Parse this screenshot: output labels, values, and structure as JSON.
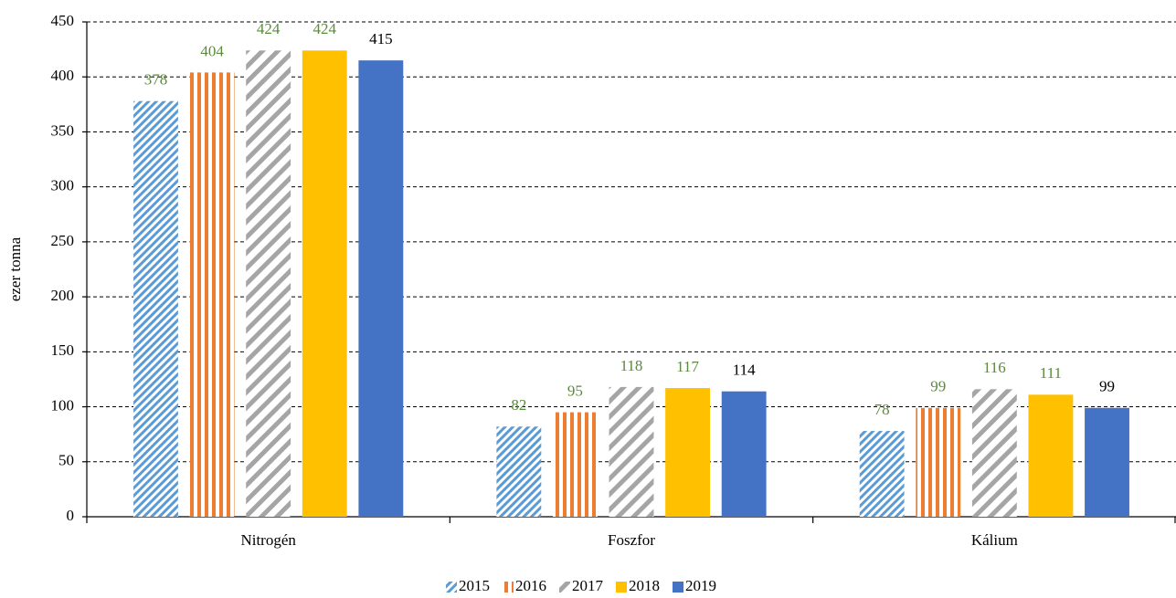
{
  "chart_data": {
    "type": "bar",
    "y_label": "ezer tonna",
    "categories": [
      "Nitrogén",
      "Foszfor",
      "Kálium"
    ],
    "series": [
      {
        "name": "2015",
        "color": "#5b9bd5",
        "pattern": "dense-diagonal",
        "label_color": "#5a8a3c",
        "values": [
          378,
          82,
          78
        ]
      },
      {
        "name": "2016",
        "color": "#ed7d31",
        "pattern": "vertical",
        "label_color": "#5a8a3c",
        "values": [
          404,
          95,
          99
        ]
      },
      {
        "name": "2017",
        "color": "#a5a5a5",
        "pattern": "wide-diagonal",
        "label_color": "#5a8a3c",
        "values": [
          424,
          118,
          116
        ]
      },
      {
        "name": "2018",
        "color": "#ffc000",
        "pattern": "solid",
        "label_color": "#5a8a3c",
        "values": [
          424,
          117,
          111
        ]
      },
      {
        "name": "2019",
        "color": "#4472c4",
        "pattern": "solid",
        "label_color": "#000000",
        "values": [
          415,
          114,
          99
        ]
      }
    ],
    "ylim": [
      0,
      450
    ],
    "yticks": [
      0,
      50,
      100,
      150,
      200,
      250,
      300,
      350,
      400,
      450
    ],
    "grid": true,
    "legend": "bottom"
  }
}
